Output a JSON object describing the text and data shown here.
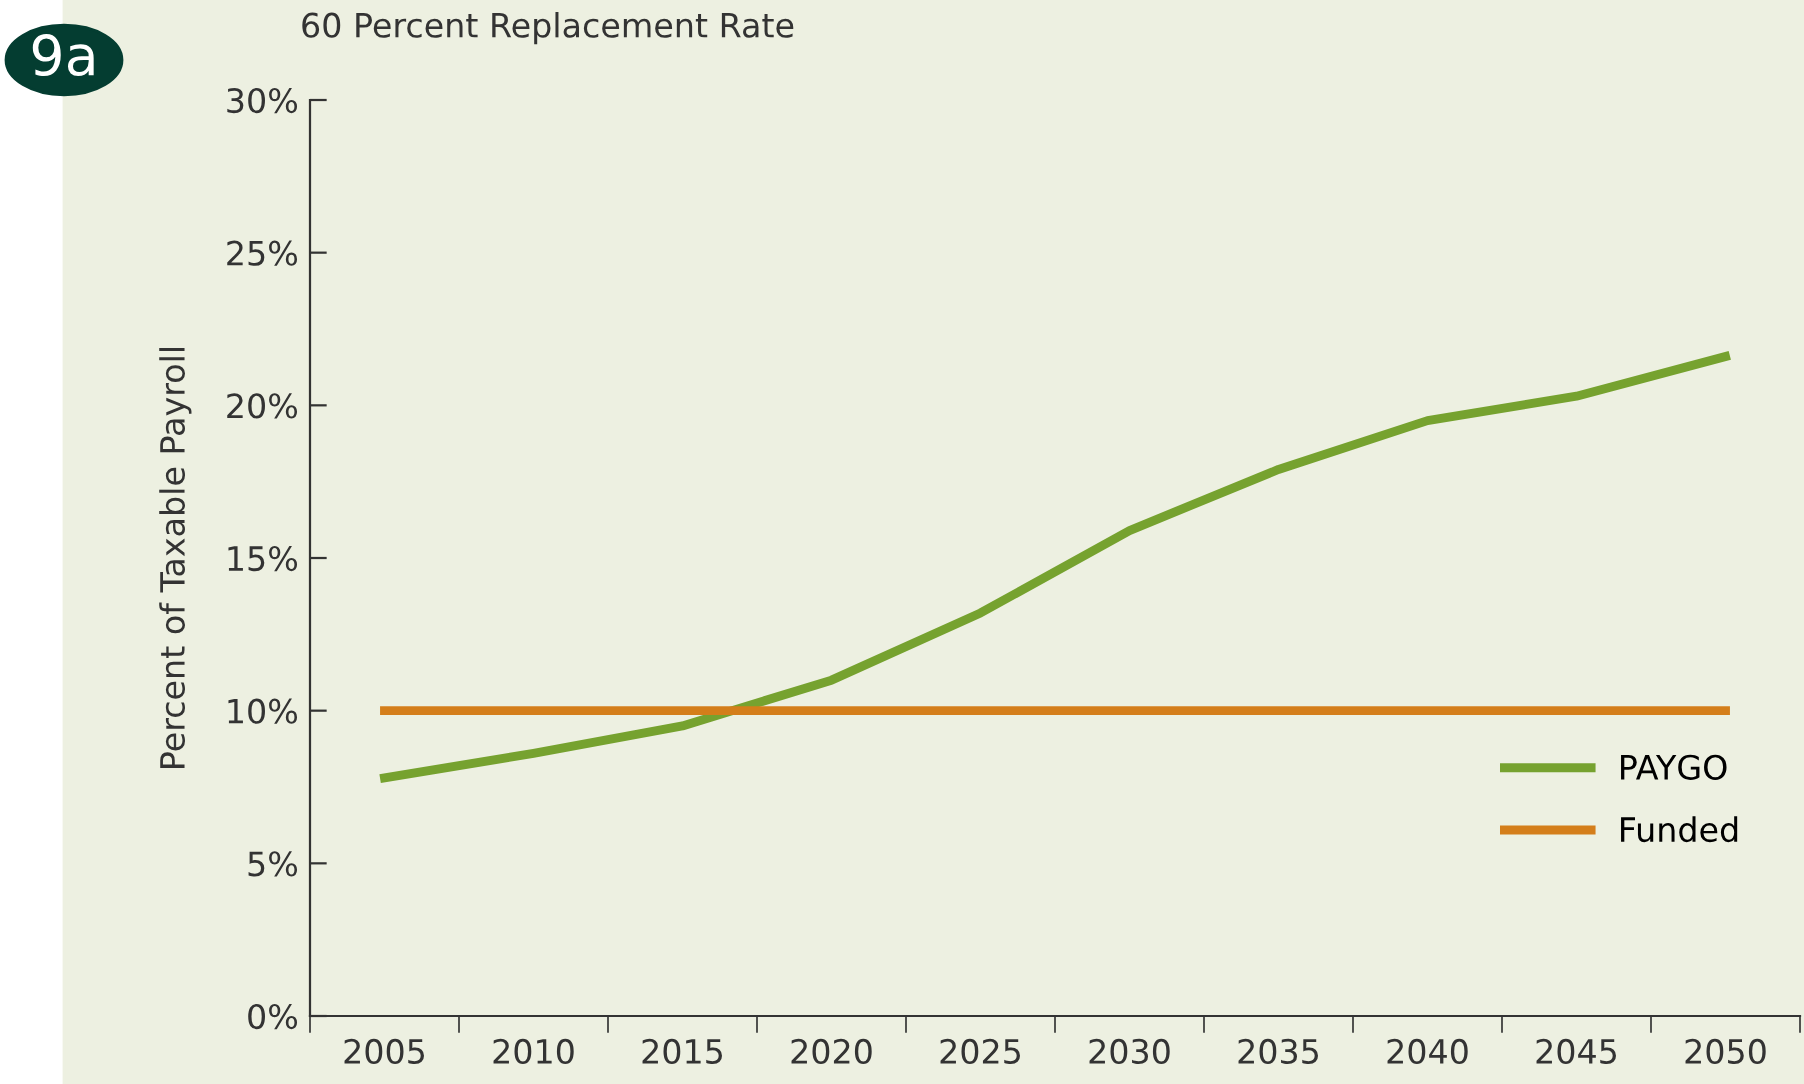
{
  "chart_data": {
    "type": "line",
    "title": "60 Percent Replacement Rate",
    "ylabel": "Percent of Taxable Payroll",
    "annotations": [
      "9a"
    ],
    "categories": [
      "2005",
      "2010",
      "2015",
      "2020",
      "2025",
      "2030",
      "2035",
      "2040",
      "2045",
      "2050"
    ],
    "series": [
      {
        "name": "PAYGO",
        "color": "#76a22f",
        "values": [
          7.8,
          8.6,
          9.5,
          11.0,
          13.2,
          15.9,
          17.9,
          19.5,
          20.3,
          21.6
        ]
      },
      {
        "name": "Funded",
        "color": "#d47e1a",
        "values": [
          10,
          10,
          10,
          10,
          10,
          10,
          10,
          10,
          10,
          10
        ]
      }
    ],
    "ylim": [
      0,
      30
    ],
    "yticks": [
      {
        "value": 0,
        "label": "0%"
      },
      {
        "value": 5,
        "label": "5%"
      },
      {
        "value": 10,
        "label": "10%"
      },
      {
        "value": 15,
        "label": "15%"
      },
      {
        "value": 20,
        "label": "20%"
      },
      {
        "value": 25,
        "label": "25%"
      },
      {
        "value": 30,
        "label": "30%"
      }
    ],
    "grid": false,
    "legend": "bottom right",
    "marker": "none",
    "line_style": "solid"
  }
}
